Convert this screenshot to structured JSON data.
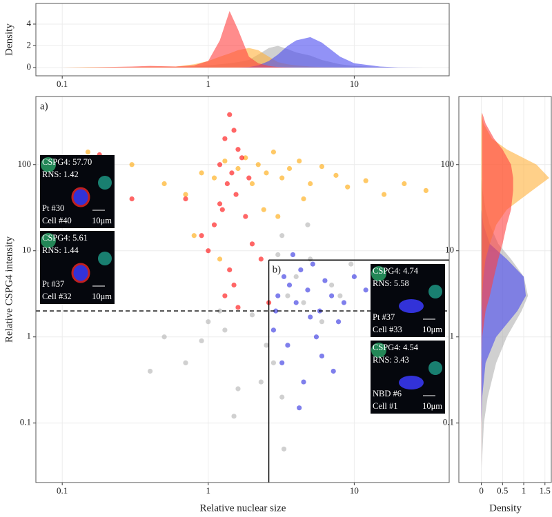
{
  "chart_data": [
    {
      "type": "density",
      "orientation": "vertical",
      "ylabel": "Density",
      "log_x": true,
      "grid": true,
      "x": [
        0.1,
        0.15,
        0.2,
        0.3,
        0.4,
        0.6,
        0.8,
        1,
        1.2,
        1.4,
        1.6,
        1.9,
        2.2,
        2.6,
        3,
        3.5,
        4,
        5,
        6,
        8,
        10,
        15,
        20,
        30
      ],
      "series": [
        {
          "color": "#b0b0b0",
          "values": [
            0,
            0,
            0,
            0,
            0,
            0.02,
            0.1,
            0.2,
            0.3,
            0.4,
            0.5,
            0.7,
            1.2,
            1.8,
            2.0,
            1.7,
            1.4,
            1.1,
            0.7,
            0.3,
            0.15,
            0.05,
            0,
            0
          ]
        },
        {
          "color": "#ffb13b",
          "values": [
            0,
            0.05,
            0.05,
            0.05,
            0.1,
            0.1,
            0.3,
            0.6,
            1.0,
            1.3,
            1.6,
            1.8,
            1.6,
            1.0,
            0.5,
            0.3,
            0.2,
            0.1,
            0.05,
            0.02,
            0,
            0,
            0,
            0
          ]
        },
        {
          "color": "#4a4af0",
          "values": [
            0,
            0,
            0,
            0,
            0,
            0,
            0,
            0,
            0,
            0,
            0,
            0.05,
            0.2,
            0.6,
            1.2,
            2.0,
            2.5,
            2.8,
            2.3,
            1.0,
            0.4,
            0.1,
            0.02,
            0
          ]
        },
        {
          "color": "#ff4040",
          "values": [
            0,
            0.02,
            0.05,
            0.1,
            0.15,
            0.1,
            0.2,
            0.6,
            2.5,
            5.2,
            3.5,
            1.0,
            0.4,
            0.15,
            0.05,
            0.02,
            0,
            0,
            0,
            0,
            0,
            0,
            0,
            0
          ]
        }
      ],
      "xlim": [
        0.066,
        44.7
      ],
      "xticks": [
        0.1,
        1,
        10
      ],
      "ylim": [
        -0.76,
        5.9
      ],
      "yticks": [
        0,
        2,
        4
      ]
    },
    {
      "type": "scatter",
      "xlabel": "Relative nuclear size",
      "ylabel": "Relative CSPG4 intensity",
      "log_x": true,
      "log_y": true,
      "grid": true,
      "xlim": [
        0.066,
        44.7
      ],
      "xticks": [
        0.1,
        1,
        10
      ],
      "ylim": [
        0.0204,
        617
      ],
      "yticks": [
        0.1,
        1,
        10,
        100
      ],
      "series": [
        {
          "color": "#ffa500",
          "x": [
            0.15,
            0.2,
            0.3,
            0.5,
            0.7,
            0.9,
            1.1,
            1.3,
            1.6,
            1.8,
            2.0,
            2.2,
            2.5,
            2.8,
            3.2,
            3.6,
            4.2,
            5,
            6,
            7.5,
            9,
            12,
            16,
            22,
            31,
            0.8,
            1.2,
            2.4,
            3.0,
            4.5
          ],
          "y": [
            140,
            90,
            100,
            60,
            45,
            80,
            70,
            110,
            90,
            120,
            60,
            100,
            80,
            140,
            70,
            90,
            110,
            60,
            95,
            75,
            55,
            65,
            45,
            60,
            50,
            15,
            8,
            30,
            25,
            40
          ]
        },
        {
          "color": "#b0b0b0",
          "x": [
            0.4,
            0.7,
            0.9,
            1.0,
            1.3,
            1.6,
            2.0,
            2.3,
            2.8,
            3.0,
            3.2,
            3.5,
            4.0,
            4.5,
            5,
            6,
            7,
            8,
            9.5,
            1.5,
            2.5,
            3.3,
            1.2,
            3.2,
            0.5,
            4.8
          ],
          "y": [
            0.4,
            0.5,
            0.9,
            1.5,
            1.2,
            0.25,
            1.8,
            0.3,
            0.5,
            9,
            15,
            3,
            5,
            2.5,
            8,
            1.5,
            4,
            3,
            7,
            0.12,
            0.8,
            0.05,
            2,
            0.2,
            1,
            20
          ]
        },
        {
          "color": "#ff0000",
          "x": [
            1.4,
            1.5,
            1.3,
            1.6,
            1.7,
            1.2,
            1.45,
            1.35,
            1.55,
            1.25,
            1.8,
            1.1,
            0.9,
            2.0,
            2.3,
            1.4,
            1.5,
            1.3,
            1.6,
            1.2,
            0.7,
            1.0,
            1.9,
            2.6,
            0.3,
            0.18
          ],
          "y": [
            380,
            250,
            200,
            150,
            120,
            100,
            80,
            60,
            45,
            30,
            25,
            20,
            15,
            12,
            8,
            6,
            4,
            3,
            2.2,
            35,
            40,
            10,
            70,
            2.5,
            40,
            130
          ]
        },
        {
          "color": "#2a2ae0",
          "x": [
            2.8,
            3.0,
            3.3,
            3.6,
            4.0,
            4.3,
            4.8,
            5.2,
            5.8,
            6.3,
            7,
            7.8,
            8.5,
            10,
            12,
            3.2,
            4.5,
            5.5,
            3.8,
            6,
            2.9,
            4.2,
            5,
            3.5,
            7.2
          ],
          "y": [
            1.2,
            3,
            5,
            4,
            2.5,
            6,
            3.5,
            7,
            2,
            4.5,
            3,
            1.5,
            2.5,
            5,
            3.5,
            0.5,
            0.3,
            1,
            9,
            0.6,
            2,
            0.15,
            1.7,
            0.8,
            0.4
          ]
        }
      ],
      "threshold_y": 2,
      "box_x": 2.6,
      "box_y": 7.8,
      "annotations": [
        "a)",
        "b)"
      ],
      "insets": [
        {
          "lines": [
            "CSPG4: 57.70",
            "RNS: 1.42",
            "Pt #30",
            "Cell #40"
          ],
          "scale": "10μm"
        },
        {
          "lines": [
            "CSPG4: 5.61",
            "RNS: 1.44",
            "Pt #37",
            "Cell #32"
          ],
          "scale": "10μm"
        },
        {
          "lines": [
            "CSPG4: 4.74",
            "RNS: 5.58",
            "Pt #37",
            "Cell #33"
          ],
          "scale": "10μm"
        },
        {
          "lines": [
            "CSPG4: 4.54",
            "RNS: 3.43",
            "NBD #6",
            "Cell #1"
          ],
          "scale": "10μm"
        }
      ]
    },
    {
      "type": "density",
      "orientation": "horizontal",
      "xlabel": "Density",
      "log_y": true,
      "grid": true,
      "y": [
        0.03,
        0.05,
        0.1,
        0.2,
        0.5,
        1,
        2,
        3,
        5,
        8,
        12,
        20,
        30,
        50,
        70,
        100,
        150,
        200,
        300,
        400
      ],
      "series": [
        {
          "color": "#b0b0b0",
          "values": [
            0.01,
            0.03,
            0.06,
            0.15,
            0.35,
            0.6,
            0.95,
            1.1,
            1.0,
            0.7,
            0.4,
            0.2,
            0.1,
            0.03,
            0,
            0,
            0,
            0,
            0,
            0
          ]
        },
        {
          "color": "#4a4af0",
          "values": [
            0,
            0,
            0,
            0.02,
            0.1,
            0.35,
            0.85,
            1.05,
            1.0,
            0.6,
            0.2,
            0.05,
            0,
            0,
            0,
            0,
            0,
            0,
            0,
            0
          ]
        },
        {
          "color": "#ffb13b",
          "values": [
            0,
            0,
            0,
            0,
            0,
            0,
            0,
            0.02,
            0.05,
            0.1,
            0.2,
            0.35,
            0.6,
            1.2,
            1.6,
            1.3,
            0.6,
            0.25,
            0.05,
            0
          ]
        },
        {
          "color": "#ff4040",
          "values": [
            0,
            0,
            0,
            0,
            0,
            0.02,
            0.1,
            0.2,
            0.3,
            0.4,
            0.5,
            0.6,
            0.7,
            0.75,
            0.75,
            0.7,
            0.5,
            0.3,
            0.1,
            0.02
          ]
        }
      ],
      "xlim": [
        -0.53,
        1.65
      ],
      "xticks": [
        0,
        0.5,
        1,
        1.5
      ],
      "ylim": [
        0.0204,
        617
      ],
      "yticks": [
        0.1,
        1,
        10,
        100
      ]
    }
  ]
}
